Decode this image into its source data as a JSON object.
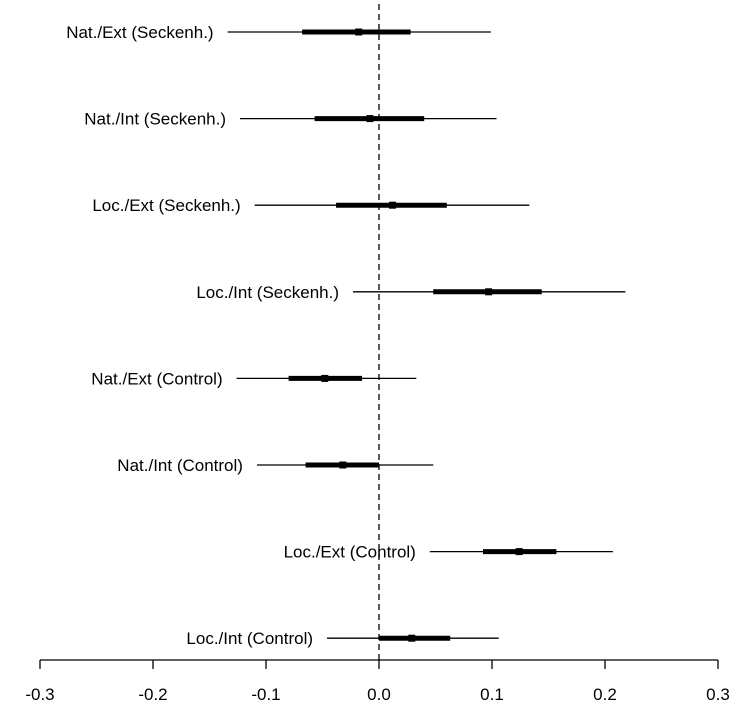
{
  "chart_data": {
    "type": "forest",
    "title": "",
    "xlabel": "",
    "ylabel": "",
    "xlim": [
      -0.3,
      0.3
    ],
    "x_ticks": [
      -0.3,
      -0.2,
      -0.1,
      0.0,
      0.1,
      0.2,
      0.3
    ],
    "x_tick_labels": [
      "-0.3",
      "-0.2",
      "-0.1",
      "0.0",
      "0.1",
      "0.2",
      "0.3"
    ],
    "reference_line": 0.0,
    "grid": false,
    "series": [
      {
        "label": "Nat./Ext (Seckenh.)",
        "estimate": -0.018,
        "inner": [
          -0.068,
          0.028
        ],
        "outer": [
          -0.134,
          0.099
        ]
      },
      {
        "label": "Nat./Int  (Seckenh.)",
        "estimate": -0.008,
        "inner": [
          -0.057,
          0.04
        ],
        "outer": [
          -0.123,
          0.104
        ]
      },
      {
        "label": "Loc./Ext (Seckenh.)",
        "estimate": 0.012,
        "inner": [
          -0.038,
          0.06
        ],
        "outer": [
          -0.11,
          0.133
        ]
      },
      {
        "label": "Loc./Int (Seckenh.)",
        "estimate": 0.097,
        "inner": [
          0.048,
          0.144
        ],
        "outer": [
          -0.023,
          0.218
        ]
      },
      {
        "label": "Nat./Ext (Control)",
        "estimate": -0.048,
        "inner": [
          -0.08,
          -0.015
        ],
        "outer": [
          -0.126,
          0.033
        ]
      },
      {
        "label": "Nat./Int (Control)",
        "estimate": -0.032,
        "inner": [
          -0.065,
          0.0
        ],
        "outer": [
          -0.108,
          0.048
        ]
      },
      {
        "label": "Loc./Ext (Control)",
        "estimate": 0.124,
        "inner": [
          0.092,
          0.157
        ],
        "outer": [
          0.045,
          0.207
        ]
      },
      {
        "label": "Loc./Int (Control)",
        "estimate": 0.029,
        "inner": [
          0.0,
          0.063
        ],
        "outer": [
          -0.046,
          0.106
        ]
      }
    ]
  }
}
